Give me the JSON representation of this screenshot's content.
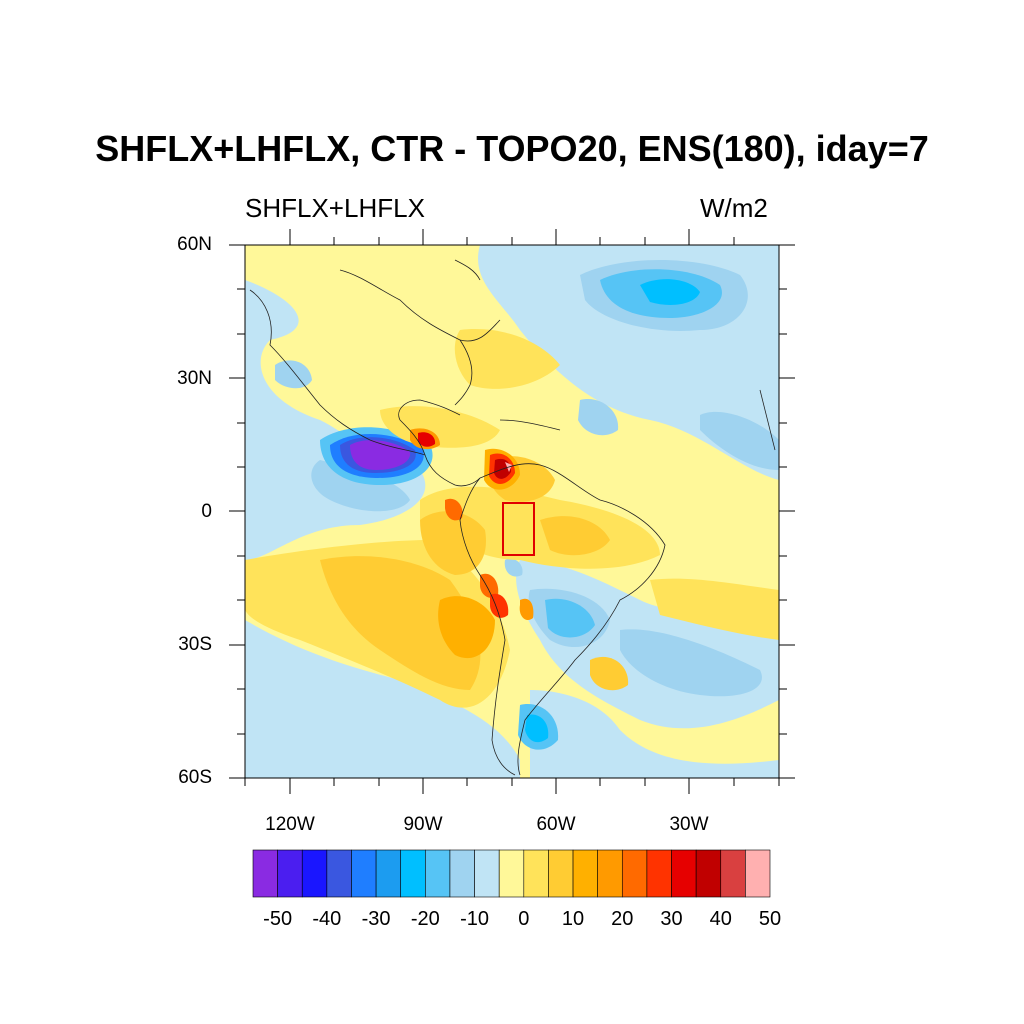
{
  "title": "SHFLX+LHFLX, CTR - TOPO20, ENS(180), iday=7",
  "subtitle_left": "SHFLX+LHFLX",
  "subtitle_right": "W/m2",
  "lat_labels": [
    "60N",
    "30N",
    "0",
    "30S",
    "60S"
  ],
  "lon_labels": [
    "120W",
    "90W",
    "60W",
    "30W"
  ],
  "colorbar": {
    "colors": [
      "#8a2be2",
      "#4b1ef0",
      "#1a16ff",
      "#3a57e0",
      "#1f7eff",
      "#1c9cf0",
      "#00bfff",
      "#56c4f5",
      "#9fd3f0",
      "#c0e4f5",
      "#fff899",
      "#ffe35a",
      "#ffcc33",
      "#ffb000",
      "#ff9a00",
      "#ff6a00",
      "#ff3300",
      "#e60000",
      "#c00000",
      "#d94040",
      "#ffb0b0"
    ],
    "tick_labels": [
      "-50",
      "-40",
      "-30",
      "-20",
      "-10",
      "0",
      "10",
      "20",
      "30",
      "40",
      "50"
    ]
  },
  "highlight_box": {
    "color": "#e00000"
  }
}
